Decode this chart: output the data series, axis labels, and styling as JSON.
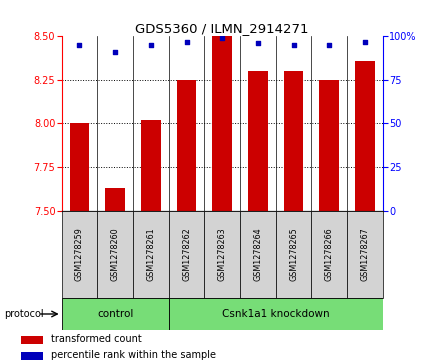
{
  "title": "GDS5360 / ILMN_2914271",
  "samples": [
    "GSM1278259",
    "GSM1278260",
    "GSM1278261",
    "GSM1278262",
    "GSM1278263",
    "GSM1278264",
    "GSM1278265",
    "GSM1278266",
    "GSM1278267"
  ],
  "transformed_counts": [
    8.0,
    7.63,
    8.02,
    8.25,
    8.5,
    8.3,
    8.3,
    8.25,
    8.36
  ],
  "percentile_ranks": [
    95,
    91,
    95,
    97,
    99,
    96,
    95,
    95,
    97
  ],
  "ylim_left": [
    7.5,
    8.5
  ],
  "ylim_right": [
    0,
    100
  ],
  "yticks_left": [
    7.5,
    7.75,
    8.0,
    8.25,
    8.5
  ],
  "yticks_right": [
    0,
    25,
    50,
    75,
    100
  ],
  "bar_color": "#cc0000",
  "dot_color": "#0000bb",
  "n_control": 3,
  "n_knockdown": 6,
  "control_label": "control",
  "knockdown_label": "Csnk1a1 knockdown",
  "protocol_label": "protocol",
  "legend_bar": "transformed count",
  "legend_dot": "percentile rank within the sample",
  "sample_box_color": "#d3d3d3",
  "protocol_box_color": "#77dd77",
  "grid_yticks": [
    7.75,
    8.0,
    8.25
  ]
}
